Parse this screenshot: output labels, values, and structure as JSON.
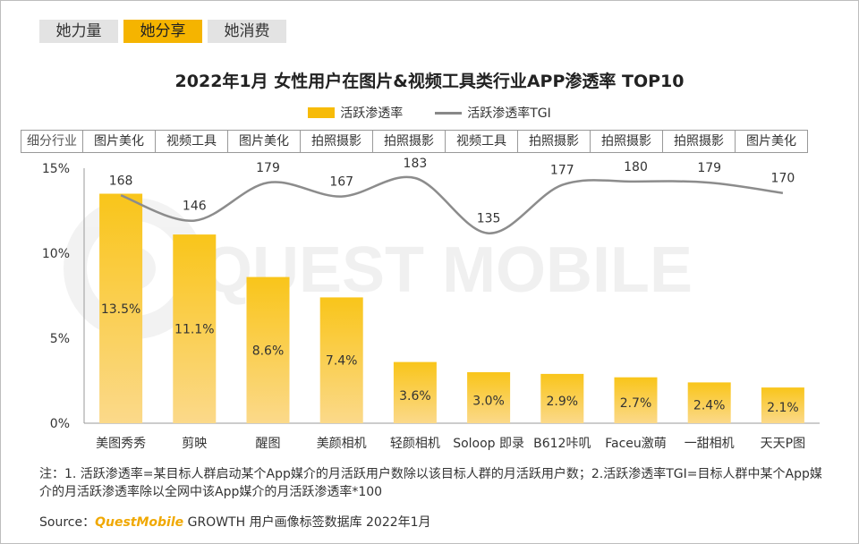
{
  "tabs": [
    {
      "label": "她力量",
      "active": false
    },
    {
      "label": "她分享",
      "active": true
    },
    {
      "label": "她消费",
      "active": false
    }
  ],
  "watermark": "QUEST MOBILE",
  "industry_header": "细分行业",
  "industries": [
    "图片美化",
    "视频工具",
    "图片美化",
    "拍照摄影",
    "拍照摄影",
    "视频工具",
    "拍照摄影",
    "拍照摄影",
    "拍照摄影",
    "图片美化"
  ],
  "note": "注：1. 活跃渗透率=某目标人群启动某个App媒介的月活跃用户数除以该目标人群的月活跃用户数；2.活跃渗透率TGI=目标人群中某个App媒介的月活跃渗透率除以全网中该App媒介的月活跃渗透率*100",
  "source": {
    "prefix": "Source：",
    "brand": "QuestMobile",
    "rest": " GROWTH 用户画像标签数据库 2022年1月"
  },
  "colors": {
    "bar_top": "#f9c51a",
    "bar_bottom": "#fbd98a",
    "line": "#8c8c8c",
    "accent": "#f5b400"
  },
  "chart_data": {
    "type": "bar",
    "title": "2022年1月 女性用户在图片&视频工具类行业APP渗透率 TOP10",
    "categories": [
      "美图秀秀",
      "剪映",
      "醒图",
      "美颜相机",
      "轻颜相机",
      "Soloop 即录",
      "B612咔叽",
      "Faceu激萌",
      "一甜相机",
      "天天P图"
    ],
    "series": [
      {
        "name": "活跃渗透率",
        "type": "bar",
        "values": [
          13.5,
          11.1,
          8.6,
          7.4,
          3.6,
          3.0,
          2.9,
          2.7,
          2.4,
          2.1
        ],
        "labels": [
          "13.5%",
          "11.1%",
          "8.6%",
          "7.4%",
          "3.6%",
          "3.0%",
          "2.9%",
          "2.7%",
          "2.4%",
          "2.1%"
        ]
      },
      {
        "name": "活跃渗透率TGI",
        "type": "line",
        "values": [
          168,
          146,
          179,
          167,
          183,
          135,
          177,
          180,
          179,
          170
        ]
      }
    ],
    "y_ticks": [
      "0%",
      "5%",
      "10%",
      "15%"
    ],
    "ylim": [
      0,
      15
    ],
    "legend": "top-center"
  }
}
